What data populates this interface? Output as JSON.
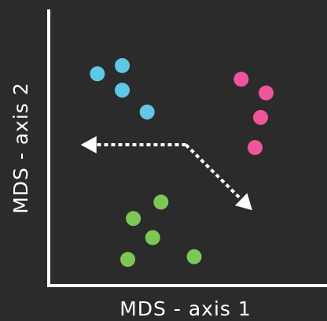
{
  "chart_data": {
    "type": "scatter",
    "title": "",
    "xlabel": "MDS - axis 1",
    "ylabel": "MDS - axis 2",
    "xlim": [
      0,
      10
    ],
    "ylim": [
      0,
      10
    ],
    "grid": false,
    "legend": "none",
    "series": [
      {
        "color": "#5ec8e5",
        "points": [
          {
            "x": 1.7,
            "y": 7.7
          },
          {
            "x": 2.6,
            "y": 8.0
          },
          {
            "x": 2.6,
            "y": 7.1
          },
          {
            "x": 3.5,
            "y": 6.3
          }
        ]
      },
      {
        "color": "#f0559b",
        "points": [
          {
            "x": 6.9,
            "y": 7.5
          },
          {
            "x": 7.8,
            "y": 7.0
          },
          {
            "x": 7.6,
            "y": 6.1
          },
          {
            "x": 7.4,
            "y": 5.0
          }
        ]
      },
      {
        "color": "#7dc855",
        "points": [
          {
            "x": 4.0,
            "y": 3.0
          },
          {
            "x": 3.0,
            "y": 2.4
          },
          {
            "x": 3.7,
            "y": 1.7
          },
          {
            "x": 2.8,
            "y": 0.9
          },
          {
            "x": 5.2,
            "y": 1.0
          }
        ]
      }
    ],
    "arrows": [
      {
        "from": {
          "x": 4.9,
          "y": 5.1
        },
        "to": {
          "x": 1.1,
          "y": 5.1
        }
      },
      {
        "from": {
          "x": 4.9,
          "y": 5.1
        },
        "to": {
          "x": 7.3,
          "y": 2.7
        }
      }
    ]
  }
}
